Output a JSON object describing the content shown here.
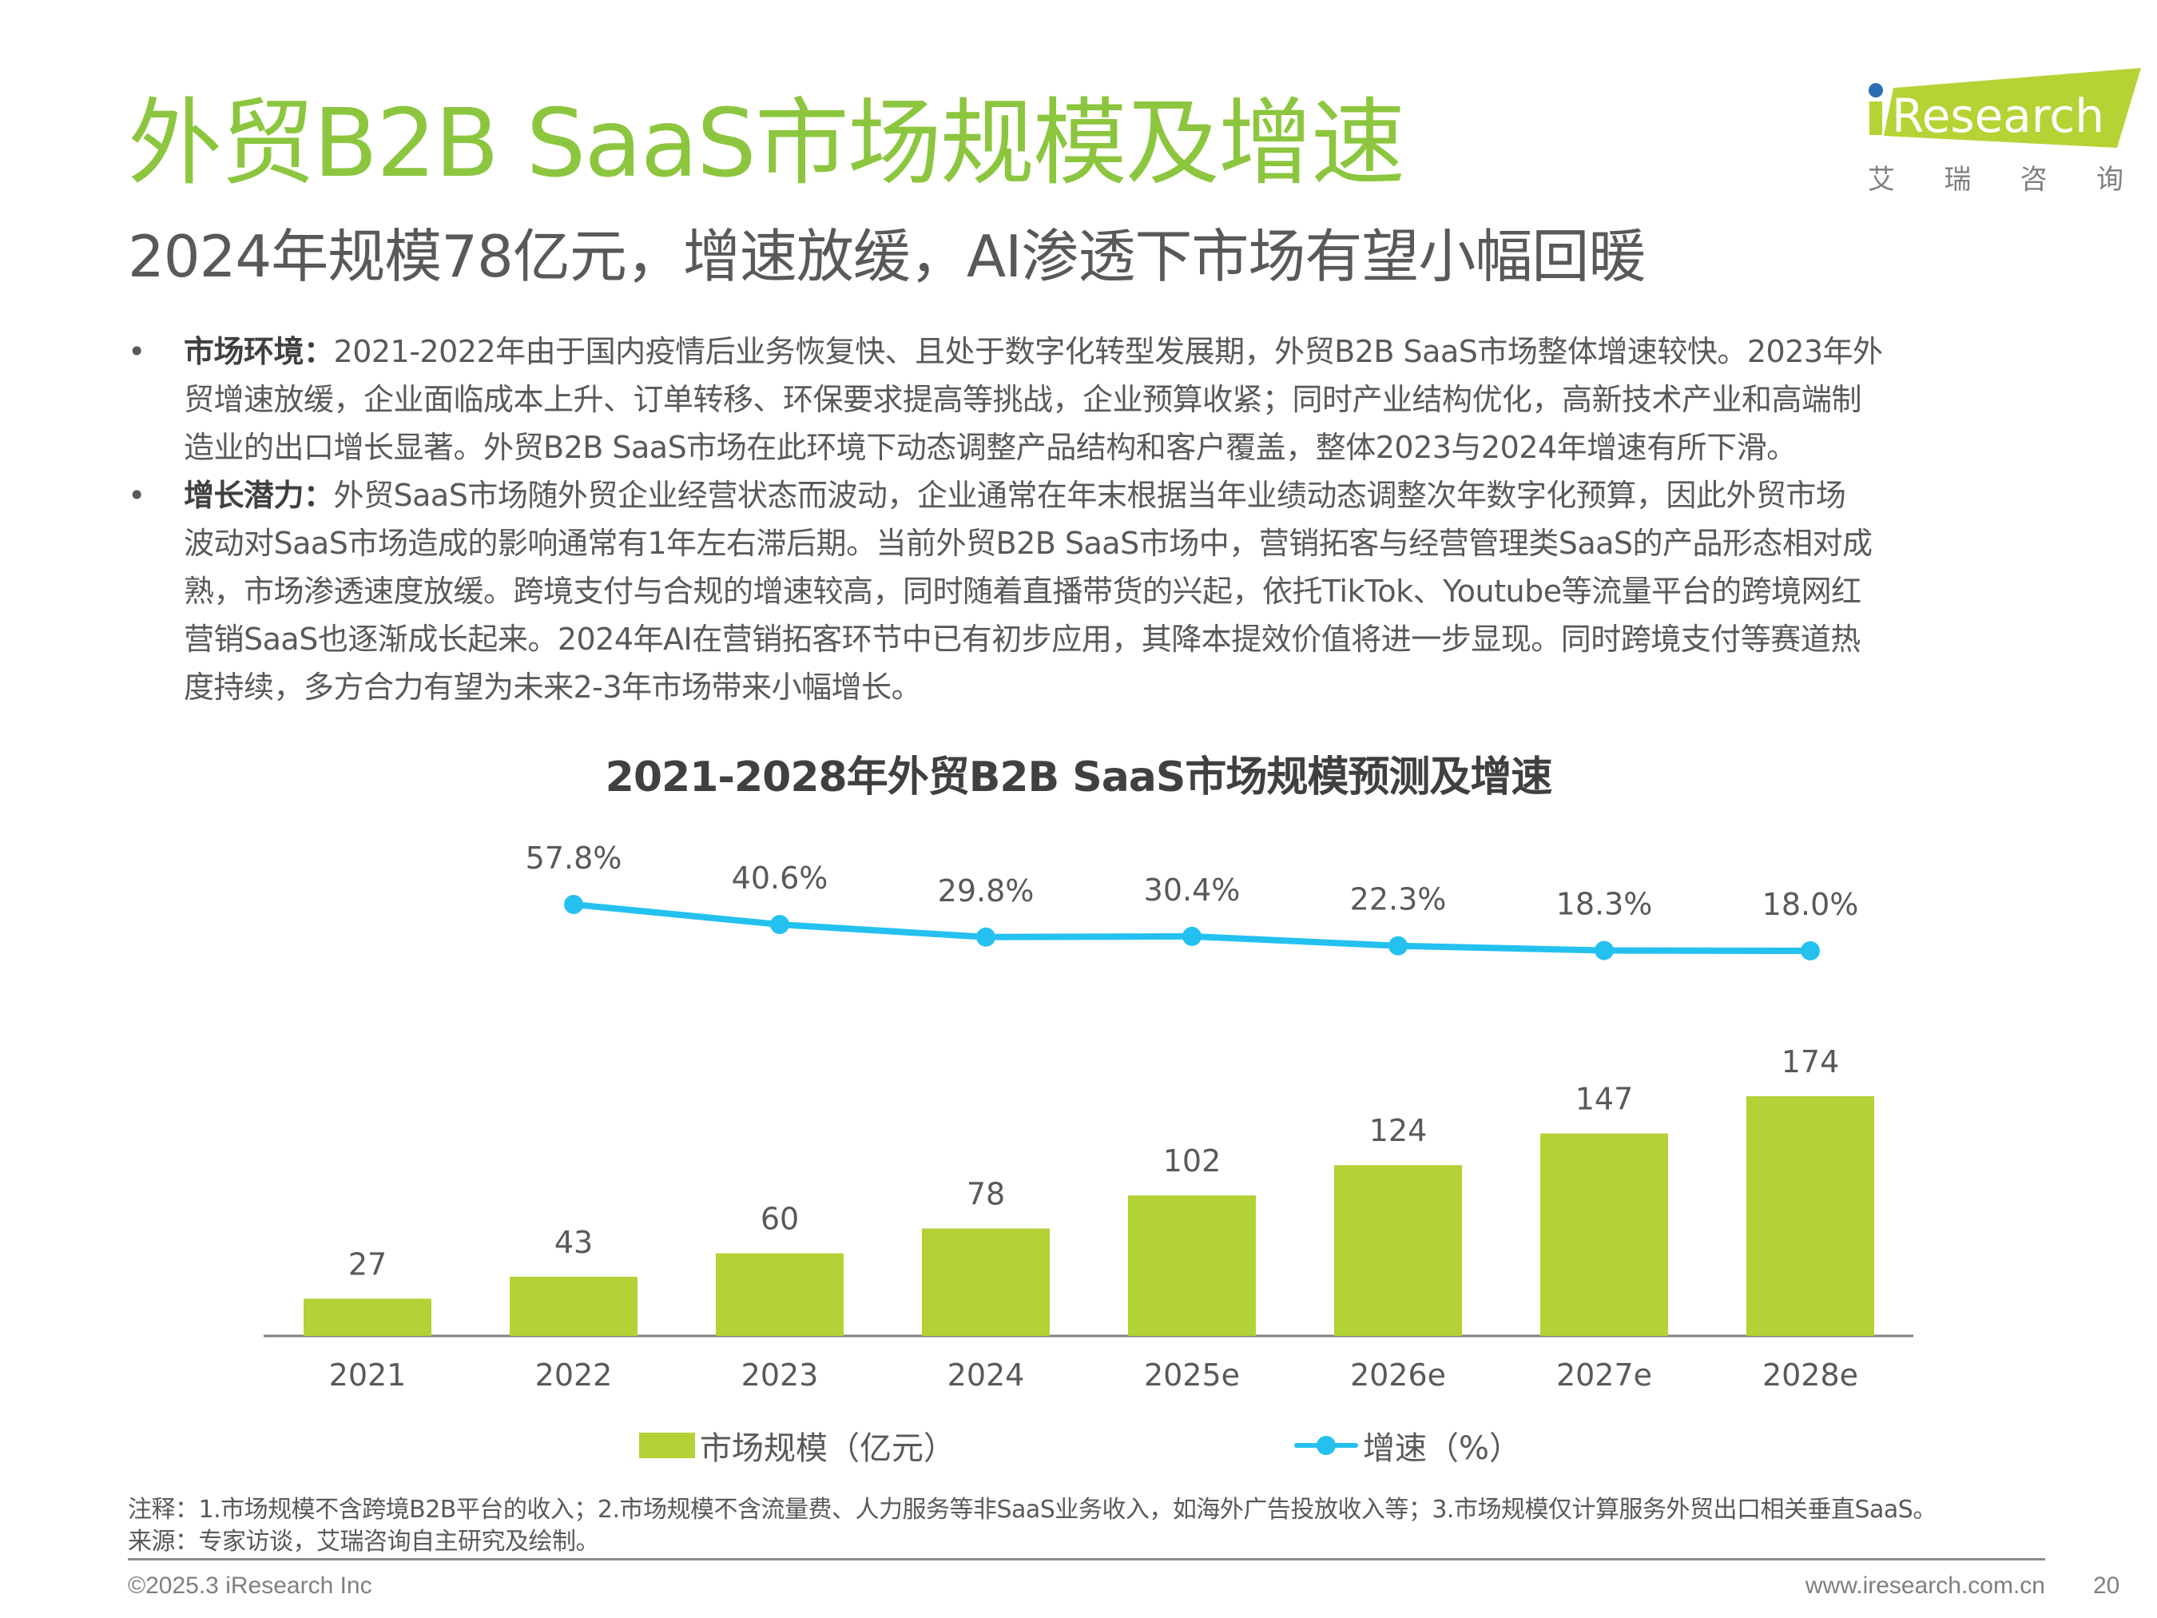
{
  "header": {
    "title": "外贸B2B SaaS市场规模及增速",
    "subtitle": "2024年规模78亿元，增速放缓，AI渗透下市场有望小幅回暖",
    "logo_text": "iResearch",
    "logo_cn": [
      "艾",
      "瑞",
      "咨",
      "询"
    ],
    "brand_color": "#8cc63f"
  },
  "bullets": [
    {
      "marker": "•",
      "heading": "市场环境：",
      "lines": [
        "2021-2022年由于国内疫情后业务恢复快、且处于数字化转型发展期，外贸B2B  SaaS市场整体增速较快。2023年外",
        "贸增速放缓，企业面临成本上升、订单转移、环保要求提高等挑战，企业预算收紧；同时产业结构优化，高新技术产业和高端制",
        "造业的出口增长显著。外贸B2B SaaS市场在此环境下动态调整产品结构和客户覆盖，整体2023与2024年增速有所下滑。"
      ]
    },
    {
      "marker": "•",
      "heading": "增长潜力：",
      "lines": [
        "外贸SaaS市场随外贸企业经营状态而波动，企业通常在年末根据当年业绩动态调整次年数字化预算，因此外贸市场",
        "波动对SaaS市场造成的影响通常有1年左右滞后期。当前外贸B2B  SaaS市场中，营销拓客与经营管理类SaaS的产品形态相对成",
        "熟，市场渗透速度放缓。跨境支付与合规的增速较高，同时随着直播带货的兴起，依托TikTok、Youtube等流量平台的跨境网红",
        "营销SaaS也逐渐成长起来。2024年AI在营销拓客环节中已有初步应用，其降本提效价值将进一步显现。同时跨境支付等赛道热",
        "度持续，多方合力有望为未来2-3年市场带来小幅增长。"
      ]
    }
  ],
  "chart_data": {
    "type": "bar",
    "title": "2021-2028年外贸B2B SaaS市场规模预测及增速",
    "categories": [
      "2021",
      "2022",
      "2023",
      "2024",
      "2025e",
      "2026e",
      "2027e",
      "2028e"
    ],
    "series": [
      {
        "name": "市场规模（亿元）",
        "type": "bar",
        "color": "#b2d235",
        "values": [
          27,
          43,
          60,
          78,
          102,
          124,
          147,
          174
        ],
        "labels": [
          "27",
          "43",
          "60",
          "78",
          "102",
          "124",
          "147",
          "174"
        ]
      },
      {
        "name": "增速（%）",
        "type": "line",
        "color": "#24c1f0",
        "x_start_index": 1,
        "values": [
          57.8,
          40.6,
          29.8,
          30.4,
          22.3,
          18.3,
          18.0
        ],
        "labels": [
          "57.8%",
          "40.6%",
          "29.8%",
          "30.4%",
          "22.3%",
          "18.3%",
          "18.0%"
        ]
      }
    ],
    "xlabel": "",
    "ylabel": "",
    "ylim": [
      0,
      174
    ],
    "grid": false,
    "legend": "bottom",
    "legend_labels": [
      "市场规模（亿元）",
      "增速（%）"
    ]
  },
  "notes": {
    "note": "注释：1.市场规模不含跨境B2B平台的收入；2.市场规模不含流量费、人力服务等非SaaS业务收入，如海外广告投放收入等；3.市场规模仅计算服务外贸出口相关垂直SaaS。",
    "source": "来源：专家访谈，艾瑞咨询自主研究及绘制。"
  },
  "footer": {
    "copyright": "©2025.3 iResearch Inc",
    "website": "www.iresearch.com.cn",
    "page_number": "20"
  }
}
